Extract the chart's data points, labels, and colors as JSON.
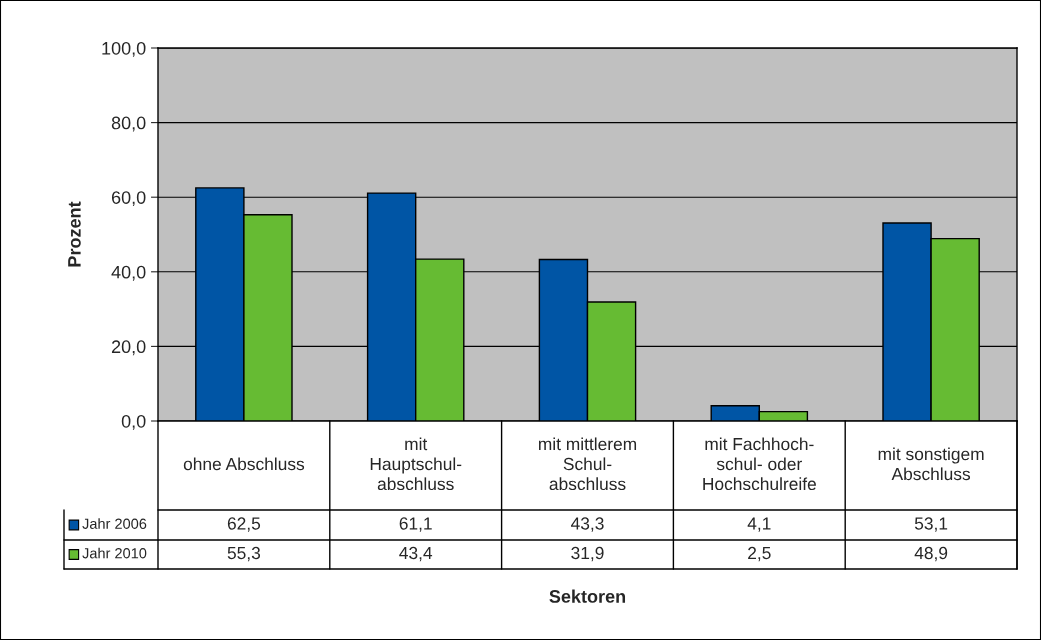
{
  "chart_data": {
    "type": "bar",
    "annotations": [
      "Sektoren"
    ],
    "ylabel": "Prozent",
    "categories": [
      "ohne Abschluss",
      "mit\nHauptschul-\nabschluss",
      "mit mittlerem\nSchul-\nabschluss",
      "mit Fachhoch-\nschul- oder\nHochschulreife",
      "mit sonstigem\nAbschluss"
    ],
    "series": [
      {
        "name": "Jahr 2006",
        "color": "#0055a5",
        "values": [
          62.5,
          61.1,
          43.3,
          4.1,
          53.1
        ],
        "value_labels": [
          "62,5",
          "61,1",
          "43,3",
          "4,1",
          "53,1"
        ]
      },
      {
        "name": "Jahr 2010",
        "color": "#66bb33",
        "values": [
          55.3,
          43.4,
          31.9,
          2.5,
          48.9
        ],
        "value_labels": [
          "55,3",
          "43,4",
          "31,9",
          "2,5",
          "48,9"
        ]
      }
    ],
    "ylim": [
      0,
      100
    ],
    "yticks": [
      {
        "value": 0,
        "label": "0,0"
      },
      {
        "value": 20,
        "label": "20,0"
      },
      {
        "value": 40,
        "label": "40,0"
      },
      {
        "value": 60,
        "label": "60,0"
      },
      {
        "value": 80,
        "label": "80,0"
      },
      {
        "value": 100,
        "label": "100,0"
      }
    ],
    "grid": "y",
    "legend": "bottom"
  }
}
